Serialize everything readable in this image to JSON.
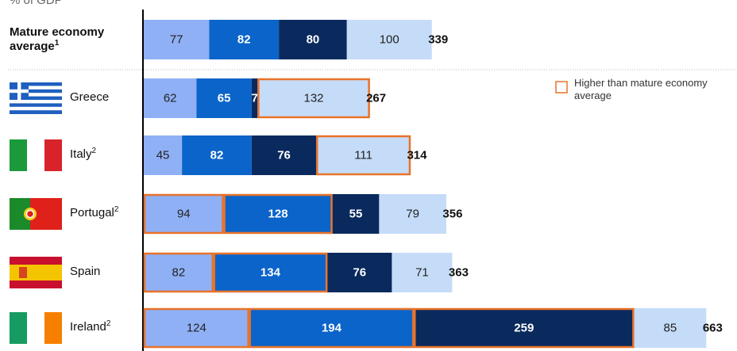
{
  "chart_data": {
    "type": "stacked-bar",
    "subtitle": "% of GDP",
    "categories": [
      "Mature economy average",
      "Greece",
      "Italy",
      "Portugal",
      "Spain",
      "Ireland"
    ],
    "footnotes": [
      "1",
      null,
      "2",
      "2",
      null,
      "2"
    ],
    "series": [
      {
        "color": "#8fb0f5",
        "values": [
          77,
          62,
          45,
          94,
          82,
          124
        ],
        "highlight": [
          false,
          false,
          false,
          true,
          true,
          true
        ]
      },
      {
        "color": "#0b64c9",
        "values": [
          82,
          65,
          82,
          128,
          134,
          194
        ],
        "highlight": [
          false,
          false,
          false,
          true,
          true,
          true
        ]
      },
      {
        "color": "#0a2a5e",
        "values": [
          80,
          7,
          76,
          55,
          76,
          259
        ],
        "highlight": [
          false,
          false,
          false,
          false,
          false,
          true
        ]
      },
      {
        "color": "#c5dcf8",
        "values": [
          100,
          132,
          111,
          79,
          71,
          85
        ],
        "highlight": [
          false,
          true,
          true,
          false,
          false,
          false
        ]
      }
    ],
    "totals": [
      339,
      267,
      314,
      356,
      363,
      663
    ],
    "highlight_color": "#e8732a",
    "legend_label": "Higher than mature economy average"
  }
}
